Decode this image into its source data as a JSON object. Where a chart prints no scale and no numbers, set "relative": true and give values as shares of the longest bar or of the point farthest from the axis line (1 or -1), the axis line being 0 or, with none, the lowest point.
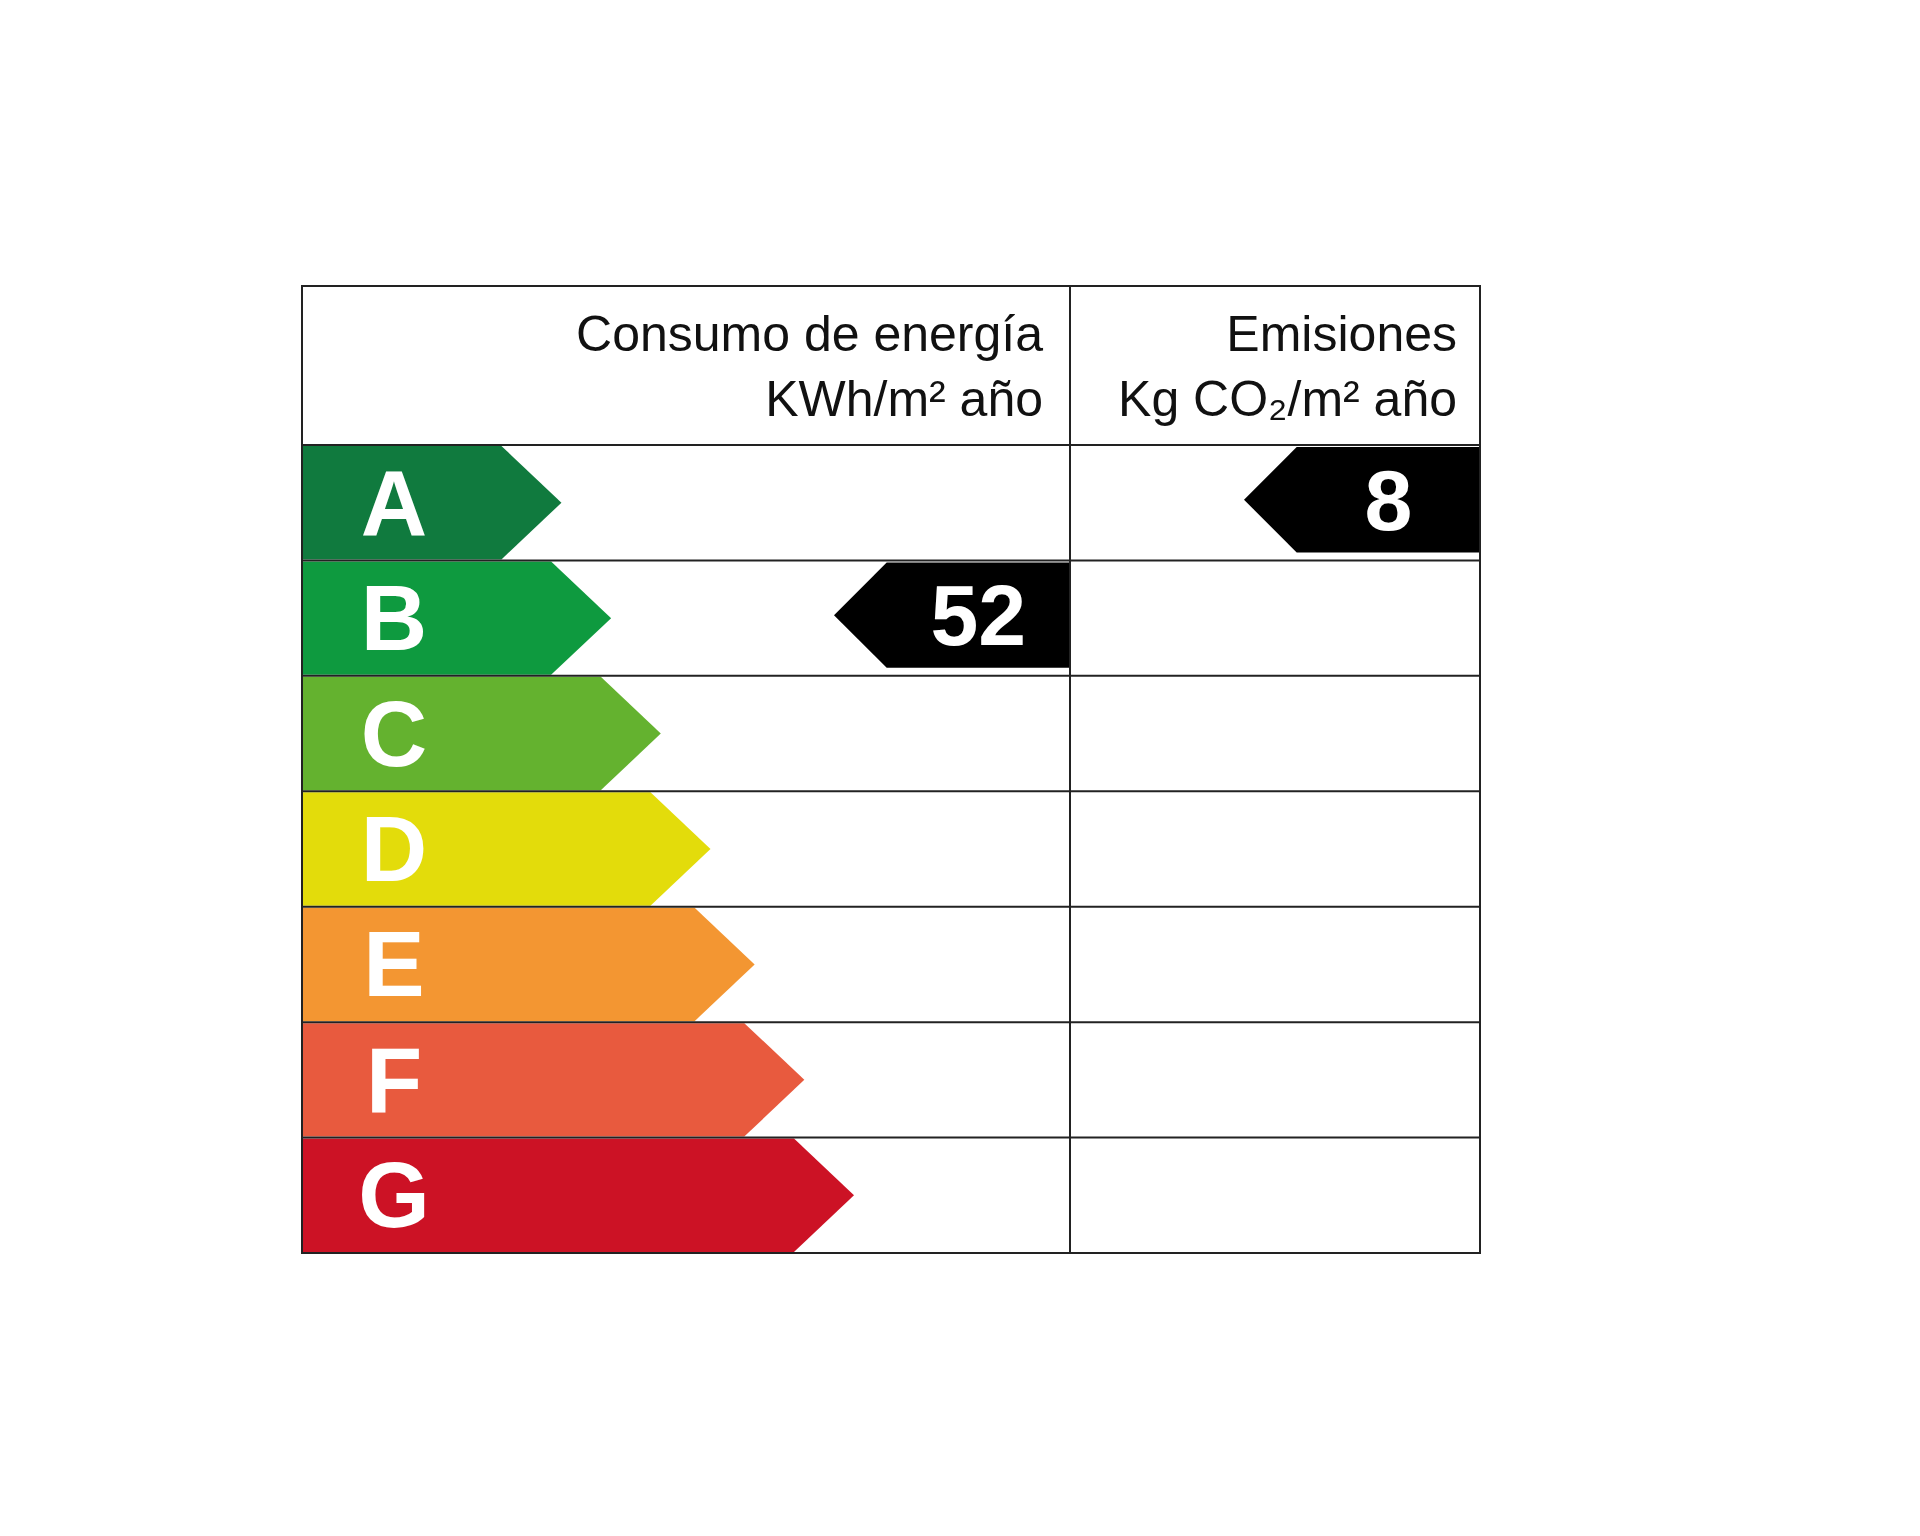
{
  "chart_data": {
    "type": "bar",
    "orientation": "horizontal",
    "relative": true,
    "title": "Consumo de energía",
    "subtitle": "KWh/m² año",
    "categories": [
      "A",
      "B",
      "C",
      "D",
      "E",
      "F",
      "G"
    ],
    "values": [
      0.47,
      0.56,
      0.65,
      0.74,
      0.82,
      0.91,
      1
    ],
    "colors": [
      "#107a3e",
      "#0e9a3f",
      "#64b22f",
      "#e3dc0b",
      "#f39632",
      "#e85a3e",
      "#cc1225"
    ],
    "annotations": [
      "Emisiones",
      "Kg CO₂/m² año",
      "52",
      "8"
    ]
  }
}
